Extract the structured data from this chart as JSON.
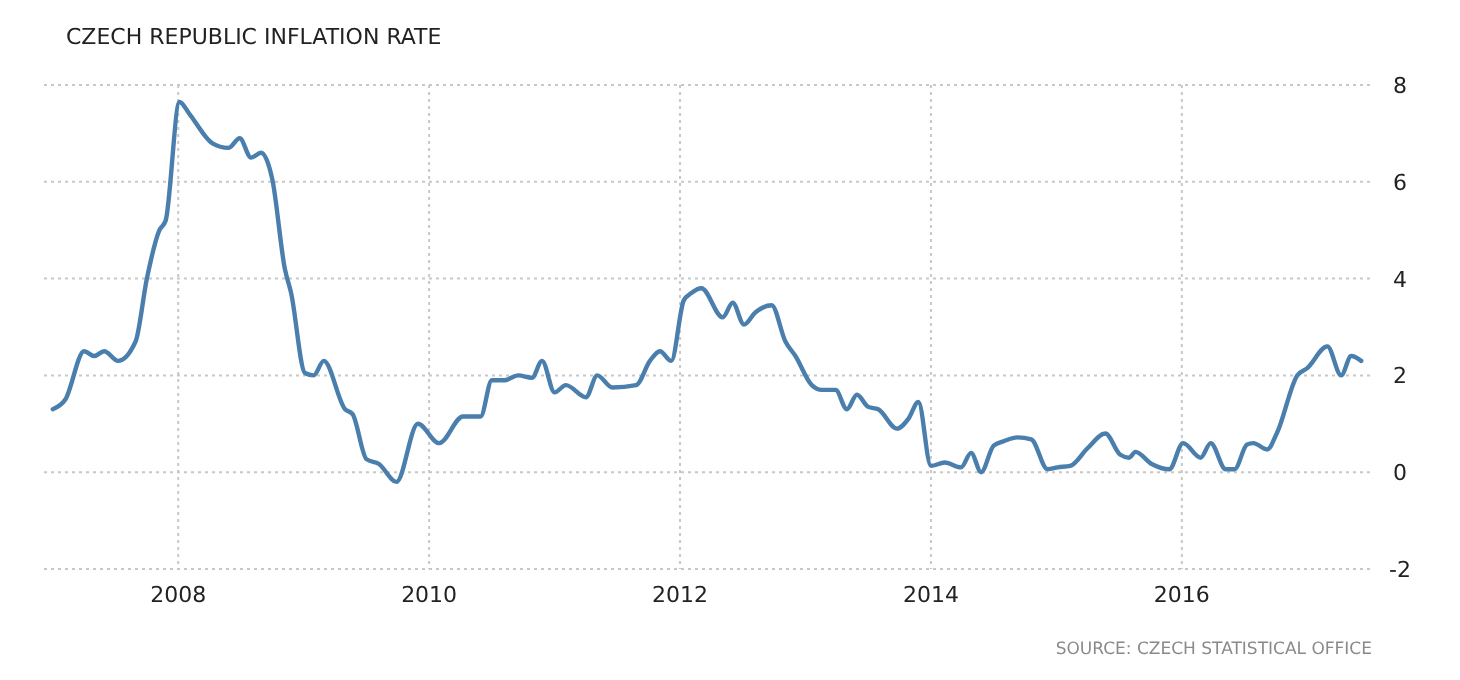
{
  "chart_data": {
    "type": "line",
    "title": "CZECH REPUBLIC INFLATION RATE",
    "annotations": [
      "SOURCE: CZECH STATISTICAL OFFICE"
    ],
    "x": [
      2007.0,
      2007.1,
      2007.25,
      2007.33,
      2007.41,
      2007.52,
      2007.66,
      2007.75,
      2007.85,
      2007.9,
      2008.01,
      2008.09,
      2008.27,
      2008.4,
      2008.49,
      2008.58,
      2008.66,
      2008.75,
      2008.85,
      2008.9,
      2009.01,
      2009.08,
      2009.16,
      2009.33,
      2009.39,
      2009.5,
      2009.6,
      2009.74,
      2009.91,
      2010.08,
      2010.27,
      2010.41,
      2010.5,
      2010.6,
      2010.71,
      2010.82,
      2010.9,
      2011.0,
      2011.09,
      2011.25,
      2011.34,
      2011.46,
      2011.65,
      2011.76,
      2011.84,
      2011.93,
      2012.03,
      2012.09,
      2012.17,
      2012.34,
      2012.42,
      2012.51,
      2012.6,
      2012.73,
      2012.84,
      2012.92,
      2013.05,
      2013.13,
      2013.24,
      2013.33,
      2013.41,
      2013.5,
      2013.58,
      2013.73,
      2013.82,
      2013.9,
      2014.0,
      2014.11,
      2014.24,
      2014.32,
      2014.4,
      2014.5,
      2014.58,
      2014.69,
      2014.8,
      2014.93,
      2015.01,
      2015.11,
      2015.25,
      2015.39,
      2015.51,
      2015.58,
      2015.63,
      2015.76,
      2015.9,
      2016.01,
      2016.15,
      2016.23,
      2016.35,
      2016.42,
      2016.52,
      2016.57,
      2016.68,
      2016.76,
      2016.92,
      2017.0,
      2017.16,
      2017.27,
      2017.35,
      2017.43
    ],
    "series": [
      {
        "color": "#4a7fad",
        "values": [
          1.3,
          1.5,
          2.5,
          2.4,
          2.5,
          2.3,
          2.7,
          4.0,
          5.0,
          5.2,
          7.65,
          7.4,
          6.8,
          6.7,
          6.9,
          6.5,
          6.6,
          6.05,
          4.2,
          3.7,
          2.05,
          2.0,
          2.3,
          1.3,
          1.2,
          0.27,
          0.17,
          -0.2,
          1.0,
          0.6,
          1.15,
          1.15,
          1.9,
          1.9,
          2.0,
          1.95,
          2.3,
          1.65,
          1.8,
          1.55,
          2.0,
          1.75,
          1.8,
          2.3,
          2.5,
          2.3,
          3.55,
          3.7,
          3.8,
          3.2,
          3.5,
          3.05,
          3.3,
          3.45,
          2.7,
          2.4,
          1.8,
          1.7,
          1.7,
          1.3,
          1.6,
          1.35,
          1.3,
          0.9,
          1.1,
          1.45,
          0.13,
          0.2,
          0.1,
          0.4,
          0.0,
          0.55,
          0.64,
          0.72,
          0.68,
          0.06,
          0.1,
          0.13,
          0.5,
          0.8,
          0.36,
          0.3,
          0.42,
          0.17,
          0.06,
          0.6,
          0.3,
          0.6,
          0.06,
          0.06,
          0.57,
          0.6,
          0.47,
          0.82,
          2.0,
          2.15,
          2.6,
          2.0,
          2.4,
          2.3
        ]
      }
    ],
    "xlim": [
      2006.93,
      2017.5
    ],
    "xticks": [
      2008,
      2010,
      2012,
      2014,
      2016
    ],
    "ylim": [
      -2,
      8
    ],
    "yticks": [
      -2,
      0,
      2,
      4,
      6,
      8
    ],
    "grid": true,
    "marker": "none",
    "line_style": "solid"
  }
}
